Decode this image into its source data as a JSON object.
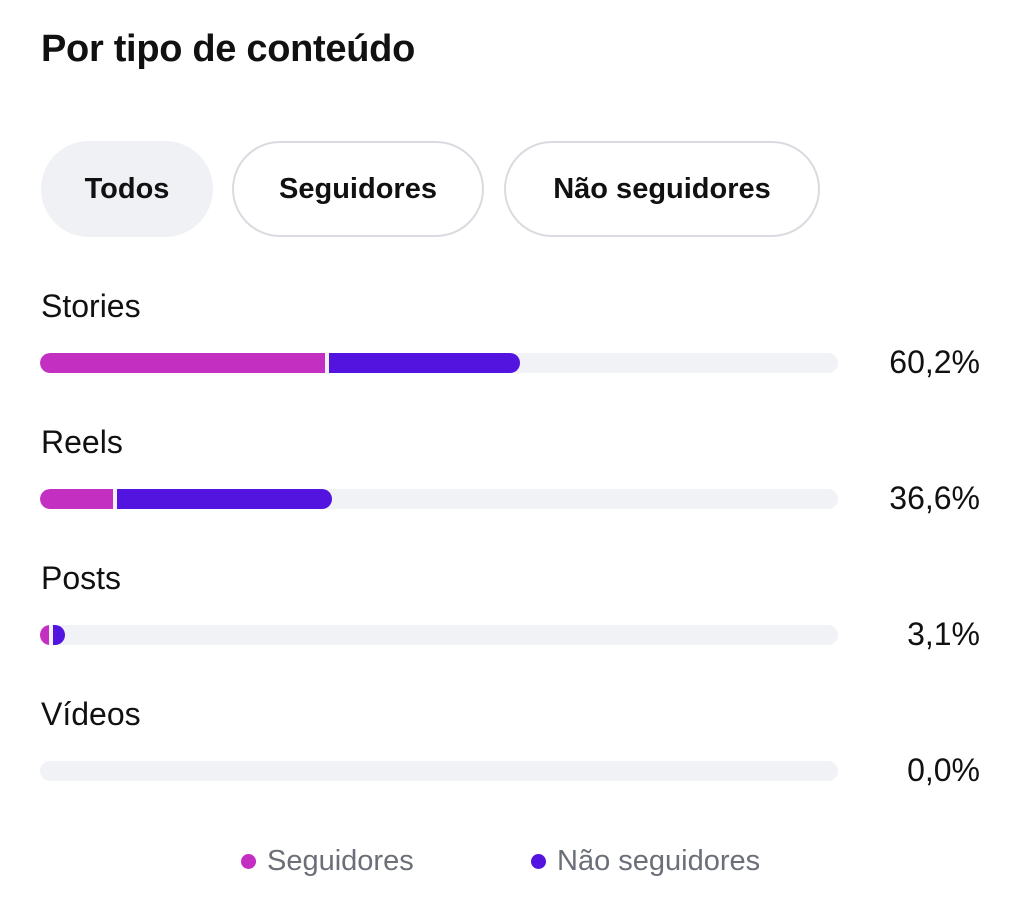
{
  "title": "Por tipo de conteúdo",
  "filters": [
    {
      "label": "Todos",
      "active": true
    },
    {
      "label": "Seguidores",
      "active": false
    },
    {
      "label": "Não seguidores",
      "active": false
    }
  ],
  "colors": {
    "seguidores": "#c32fc1",
    "nao_seguidores": "#5414e0",
    "track": "#f1f2f5"
  },
  "rows": [
    {
      "label": "Stories",
      "percent_text": "60,2%",
      "total": 60.2,
      "seguidores_share": 0.593
    },
    {
      "label": "Reels",
      "percent_text": "36,6%",
      "total": 36.6,
      "seguidores_share": 0.25
    },
    {
      "label": "Posts",
      "percent_text": "3,1%",
      "total": 3.1,
      "seguidores_share": 0.35
    },
    {
      "label": "Vídeos",
      "percent_text": "0,0%",
      "total": 0.0,
      "seguidores_share": 0.0
    }
  ],
  "legend": {
    "seguidores": "Seguidores",
    "nao_seguidores": "Não seguidores"
  }
}
